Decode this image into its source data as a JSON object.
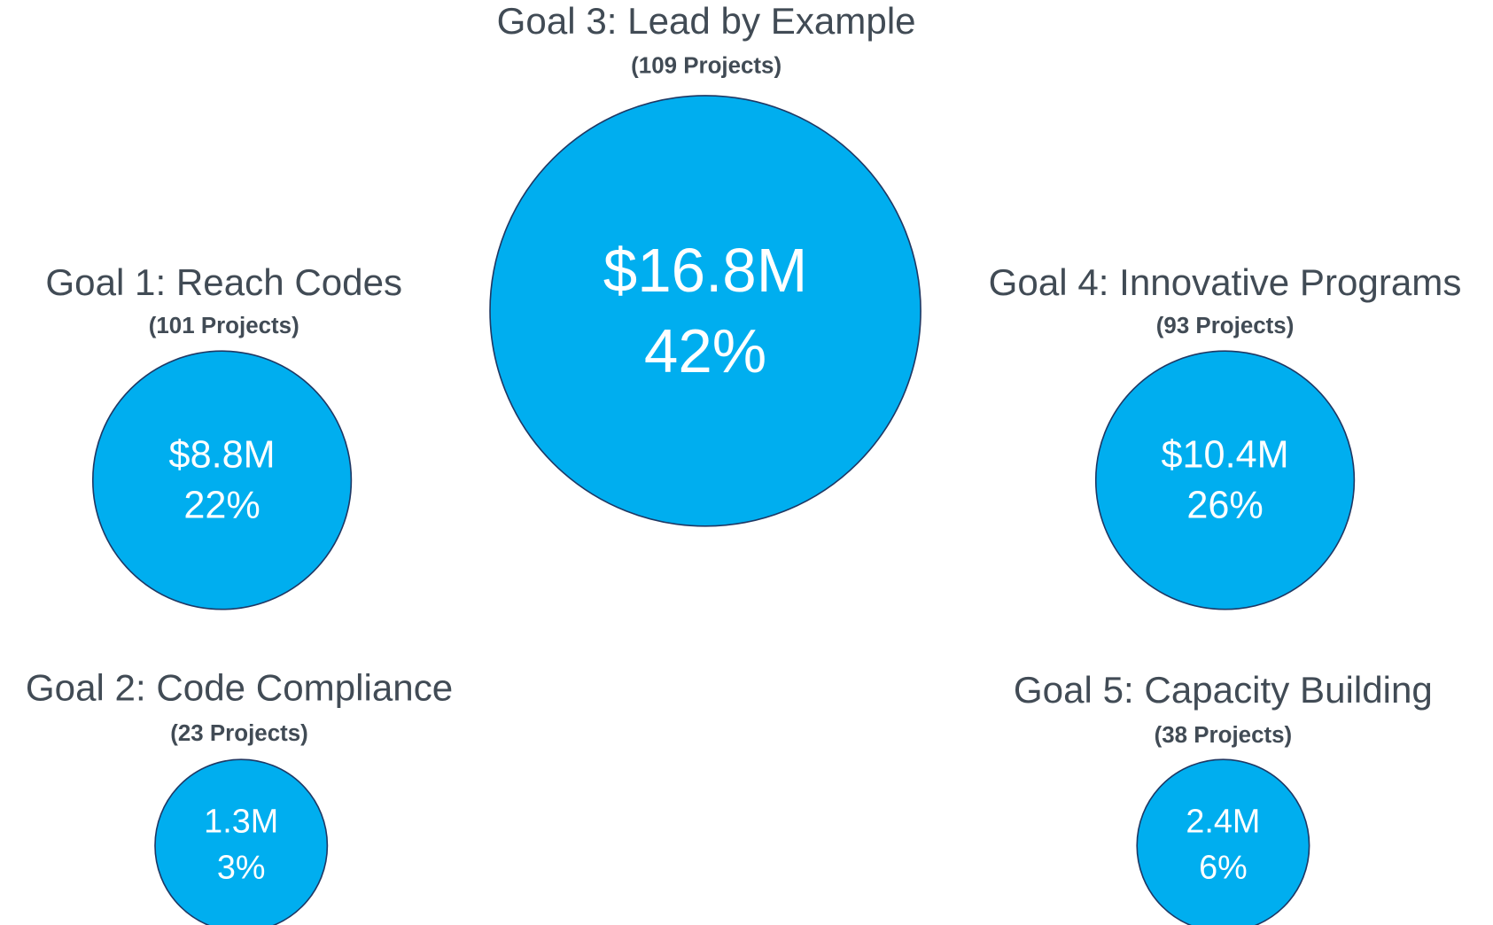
{
  "goals": [
    {
      "title": "Goal 3: Lead by Example",
      "projects": "(109 Projects)",
      "amount": "$16.8M",
      "share": "42%"
    },
    {
      "title": "Goal 1: Reach Codes",
      "projects": "(101 Projects)",
      "amount": "$8.8M",
      "share": "22%"
    },
    {
      "title": "Goal 4: Innovative Programs",
      "projects": "(93 Projects)",
      "amount": "$10.4M",
      "share": "26%"
    },
    {
      "title": "Goal 2: Code Compliance",
      "projects": "(23 Projects)",
      "amount": "1.3M",
      "share": "3%"
    },
    {
      "title": "Goal 5: Capacity Building",
      "projects": "(38 Projects)",
      "amount": "2.4M",
      "share": "6%"
    }
  ]
}
